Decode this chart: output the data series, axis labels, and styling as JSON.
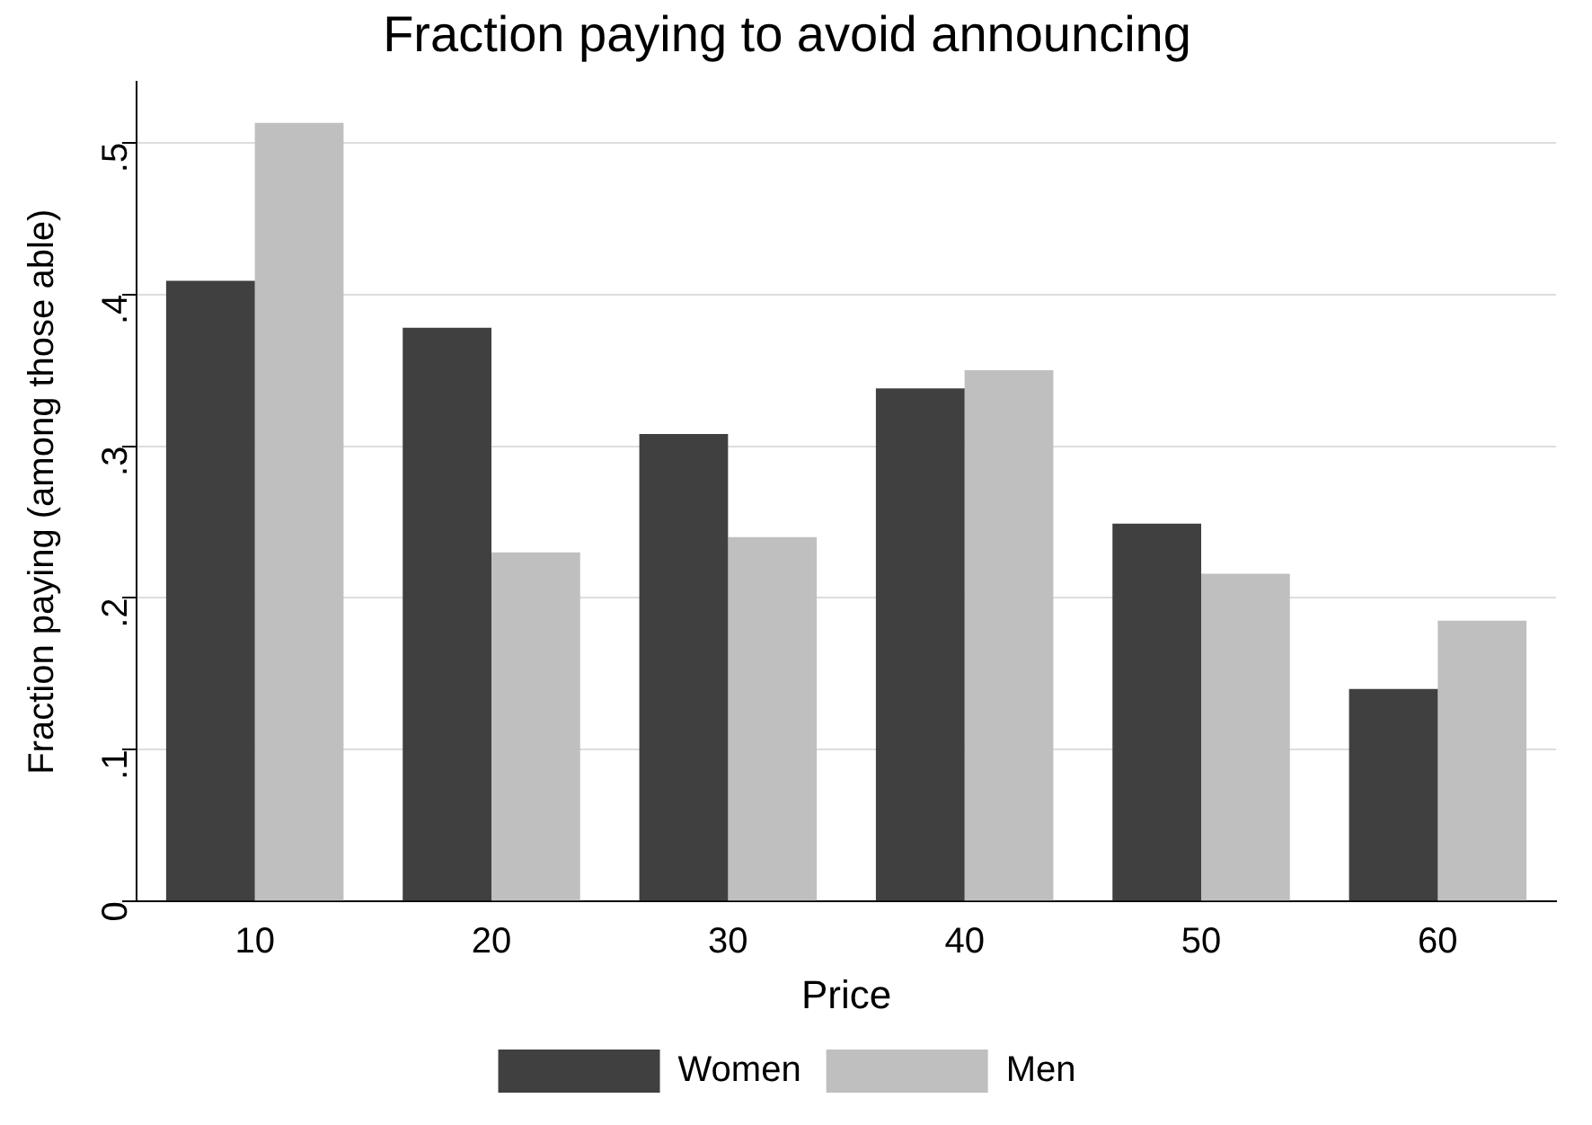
{
  "chart_data": {
    "type": "bar",
    "title": "Fraction paying to avoid announcing",
    "xlabel": "Price",
    "ylabel": "Fraction paying (among those able)",
    "categories": [
      "10",
      "20",
      "30",
      "40",
      "50",
      "60"
    ],
    "series": [
      {
        "name": "Women",
        "color": "#404040",
        "values": [
          0.409,
          0.378,
          0.308,
          0.338,
          0.249,
          0.14
        ]
      },
      {
        "name": "Men",
        "color": "#bfbfbf",
        "values": [
          0.513,
          0.23,
          0.24,
          0.35,
          0.216,
          0.185
        ]
      }
    ],
    "ylim": [
      0,
      0.54
    ],
    "yticks": [
      0,
      {
        "value": 0.1,
        "label": ".1"
      },
      {
        "value": 0.2,
        "label": ".2"
      },
      {
        "value": 0.3,
        "label": ".3"
      },
      {
        "value": 0.4,
        "label": ".4"
      },
      {
        "value": 0.5,
        "label": ".5"
      }
    ],
    "grid": "y",
    "legend": "bottom"
  }
}
